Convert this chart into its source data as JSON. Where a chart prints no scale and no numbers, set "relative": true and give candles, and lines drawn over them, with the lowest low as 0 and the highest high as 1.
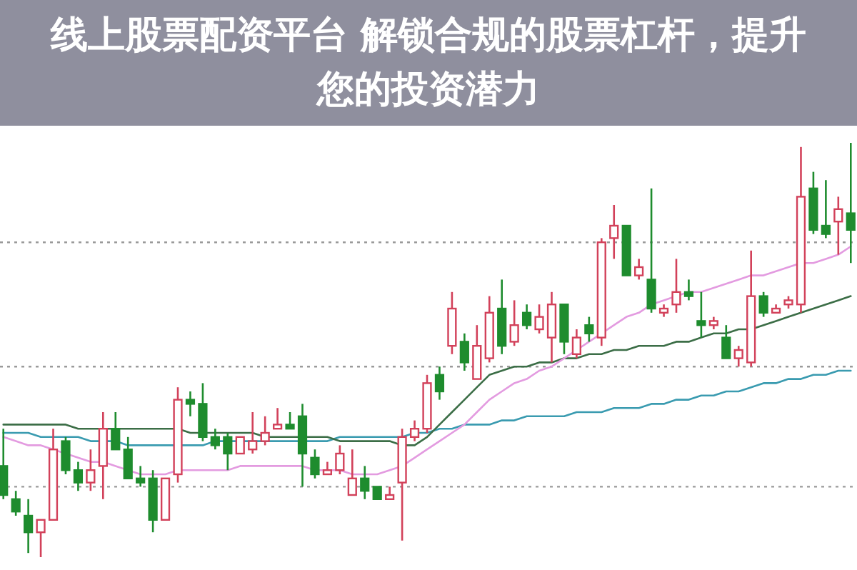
{
  "chart_data": {
    "type": "candlestick",
    "title": "线上股票配资平台 解锁合规的股票杠杆，提升您的投资潜力",
    "relative": true,
    "tick_labels": false,
    "categories": [
      null,
      null,
      null,
      null,
      null,
      null,
      null,
      null,
      null,
      null,
      null,
      null,
      null,
      null,
      null,
      null,
      null,
      null,
      null,
      null,
      null,
      null,
      null,
      null,
      null,
      null,
      null,
      null,
      null,
      null,
      null,
      null,
      null,
      null,
      null,
      null,
      null,
      null,
      null,
      null,
      null,
      null,
      null,
      null,
      null,
      null,
      null,
      null,
      null,
      null,
      null,
      null,
      null,
      null,
      null,
      null,
      null,
      null,
      null,
      null,
      null,
      null,
      null,
      null,
      null,
      null,
      null,
      null,
      null
    ],
    "ohlc": [
      [
        0.22,
        0.31,
        0.14,
        0.15
      ],
      [
        0.14,
        0.16,
        0.1,
        0.11
      ],
      [
        0.1,
        0.14,
        0.01,
        0.06
      ],
      [
        0.06,
        0.09,
        0.0,
        0.09
      ],
      [
        0.09,
        0.31,
        0.09,
        0.26
      ],
      [
        0.28,
        0.29,
        0.2,
        0.21
      ],
      [
        0.21,
        0.23,
        0.16,
        0.18
      ],
      [
        0.18,
        0.26,
        0.16,
        0.21
      ],
      [
        0.22,
        0.35,
        0.14,
        0.31
      ],
      [
        0.31,
        0.35,
        0.26,
        0.26
      ],
      [
        0.26,
        0.29,
        0.19,
        0.19
      ],
      [
        0.19,
        0.22,
        0.17,
        0.18
      ],
      [
        0.19,
        0.21,
        0.06,
        0.09
      ],
      [
        0.09,
        0.19,
        0.09,
        0.19
      ],
      [
        0.2,
        0.41,
        0.18,
        0.38
      ],
      [
        0.38,
        0.4,
        0.34,
        0.37
      ],
      [
        0.37,
        0.42,
        0.28,
        0.29
      ],
      [
        0.29,
        0.31,
        0.26,
        0.27
      ],
      [
        0.29,
        0.3,
        0.21,
        0.25
      ],
      [
        0.25,
        0.29,
        0.25,
        0.29
      ],
      [
        0.26,
        0.35,
        0.25,
        0.28
      ],
      [
        0.28,
        0.34,
        0.27,
        0.3
      ],
      [
        0.31,
        0.36,
        0.31,
        0.32
      ],
      [
        0.32,
        0.35,
        0.31,
        0.31
      ],
      [
        0.34,
        0.37,
        0.17,
        0.25
      ],
      [
        0.24,
        0.26,
        0.19,
        0.2
      ],
      [
        0.2,
        0.23,
        0.2,
        0.21
      ],
      [
        0.21,
        0.27,
        0.2,
        0.25
      ],
      [
        0.15,
        0.26,
        0.15,
        0.19
      ],
      [
        0.19,
        0.22,
        0.14,
        0.16
      ],
      [
        0.17,
        0.17,
        0.14,
        0.14
      ],
      [
        0.14,
        0.17,
        0.14,
        0.15
      ],
      [
        0.18,
        0.31,
        0.04,
        0.29
      ],
      [
        0.29,
        0.33,
        0.28,
        0.31
      ],
      [
        0.31,
        0.44,
        0.3,
        0.42
      ],
      [
        0.44,
        0.46,
        0.38,
        0.4
      ],
      [
        0.51,
        0.64,
        0.49,
        0.6
      ],
      [
        0.52,
        0.54,
        0.45,
        0.47
      ],
      [
        0.43,
        0.56,
        0.43,
        0.51
      ],
      [
        0.48,
        0.63,
        0.47,
        0.59
      ],
      [
        0.6,
        0.67,
        0.49,
        0.51
      ],
      [
        0.52,
        0.62,
        0.51,
        0.56
      ],
      [
        0.59,
        0.61,
        0.55,
        0.56
      ],
      [
        0.55,
        0.61,
        0.54,
        0.58
      ],
      [
        0.53,
        0.64,
        0.47,
        0.61
      ],
      [
        0.61,
        0.61,
        0.49,
        0.52
      ],
      [
        0.49,
        0.55,
        0.48,
        0.53
      ],
      [
        0.56,
        0.58,
        0.52,
        0.54
      ],
      [
        0.53,
        0.77,
        0.51,
        0.76
      ],
      [
        0.77,
        0.85,
        0.72,
        0.8
      ],
      [
        0.8,
        0.8,
        0.68,
        0.68
      ],
      [
        0.68,
        0.72,
        0.67,
        0.7
      ],
      [
        0.67,
        0.89,
        0.59,
        0.6
      ],
      [
        0.59,
        0.61,
        0.58,
        0.6
      ],
      [
        0.61,
        0.72,
        0.59,
        0.64
      ],
      [
        0.64,
        0.67,
        0.62,
        0.63
      ],
      [
        0.57,
        0.64,
        0.53,
        0.56
      ],
      [
        0.56,
        0.58,
        0.55,
        0.57
      ],
      [
        0.53,
        0.56,
        0.48,
        0.48
      ],
      [
        0.48,
        0.51,
        0.46,
        0.5
      ],
      [
        0.47,
        0.74,
        0.46,
        0.63
      ],
      [
        0.63,
        0.64,
        0.58,
        0.59
      ],
      [
        0.59,
        0.61,
        0.59,
        0.6
      ],
      [
        0.61,
        0.63,
        0.6,
        0.62
      ],
      [
        0.61,
        0.99,
        0.59,
        0.87
      ],
      [
        0.89,
        0.93,
        0.78,
        0.79
      ],
      [
        0.8,
        0.91,
        0.77,
        0.78
      ],
      [
        0.81,
        0.87,
        0.73,
        0.84
      ],
      [
        0.83,
        1.0,
        0.71,
        0.79
      ]
    ],
    "colors": [
      "#1e8c2e",
      "#1e8c2e",
      "#1e8c2e",
      "#d2415a",
      "#d2415a",
      "#1e8c2e",
      "#1e8c2e",
      "#d2415a",
      "#d2415a",
      "#1e8c2e",
      "#1e8c2e",
      "#1e8c2e",
      "#1e8c2e",
      "#d2415a",
      "#d2415a",
      "#1e8c2e",
      "#1e8c2e",
      "#1e8c2e",
      "#1e8c2e",
      "#d2415a",
      "#d2415a",
      "#d2415a",
      "#d2415a",
      "#1e8c2e",
      "#1e8c2e",
      "#1e8c2e",
      "#d2415a",
      "#d2415a",
      "#d2415a",
      "#1e8c2e",
      "#1e8c2e",
      "#d2415a",
      "#d2415a",
      "#d2415a",
      "#d2415a",
      "#1e8c2e",
      "#d2415a",
      "#1e8c2e",
      "#d2415a",
      "#d2415a",
      "#1e8c2e",
      "#d2415a",
      "#1e8c2e",
      "#d2415a",
      "#d2415a",
      "#1e8c2e",
      "#d2415a",
      "#1e8c2e",
      "#d2415a",
      "#d2415a",
      "#1e8c2e",
      "#d2415a",
      "#1e8c2e",
      "#d2415a",
      "#d2415a",
      "#1e8c2e",
      "#1e8c2e",
      "#d2415a",
      "#1e8c2e",
      "#d2415a",
      "#d2415a",
      "#1e8c2e",
      "#d2415a",
      "#d2415a",
      "#d2415a",
      "#1e8c2e",
      "#1e8c2e",
      "#d2415a",
      "#1e8c2e"
    ],
    "series": [
      {
        "type": "line",
        "color": "#3a9bb0",
        "values": [
          0.3,
          0.3,
          0.3,
          0.29,
          0.29,
          0.29,
          0.29,
          0.28,
          0.28,
          0.28,
          0.27,
          0.27,
          0.27,
          0.27,
          0.27,
          0.27,
          0.27,
          0.28,
          0.28,
          0.28,
          0.28,
          0.28,
          0.28,
          0.28,
          0.28,
          0.28,
          0.28,
          0.29,
          0.29,
          0.29,
          0.29,
          0.29,
          0.29,
          0.3,
          0.3,
          0.31,
          0.31,
          0.32,
          0.32,
          0.32,
          0.33,
          0.33,
          0.34,
          0.34,
          0.34,
          0.34,
          0.35,
          0.35,
          0.35,
          0.36,
          0.36,
          0.36,
          0.37,
          0.37,
          0.38,
          0.38,
          0.39,
          0.39,
          0.4,
          0.4,
          0.41,
          0.42,
          0.42,
          0.43,
          0.43,
          0.44,
          0.44,
          0.45,
          0.45
        ]
      },
      {
        "type": "line",
        "color": "#3c6e47",
        "values": [
          0.32,
          0.32,
          0.32,
          0.32,
          0.32,
          0.32,
          0.31,
          0.31,
          0.31,
          0.31,
          0.31,
          0.31,
          0.31,
          0.31,
          0.31,
          0.3,
          0.3,
          0.3,
          0.3,
          0.3,
          0.3,
          0.29,
          0.29,
          0.29,
          0.29,
          0.29,
          0.29,
          0.28,
          0.28,
          0.28,
          0.28,
          0.28,
          0.27,
          0.27,
          0.29,
          0.32,
          0.35,
          0.38,
          0.41,
          0.44,
          0.45,
          0.46,
          0.46,
          0.47,
          0.47,
          0.48,
          0.48,
          0.49,
          0.49,
          0.5,
          0.5,
          0.51,
          0.51,
          0.51,
          0.52,
          0.52,
          0.53,
          0.54,
          0.54,
          0.55,
          0.55,
          0.56,
          0.57,
          0.58,
          0.59,
          0.6,
          0.61,
          0.62,
          0.63
        ]
      },
      {
        "type": "line",
        "color": "#e39be0",
        "values": [
          0.29,
          0.28,
          0.27,
          0.27,
          0.26,
          0.25,
          0.24,
          0.23,
          0.23,
          0.22,
          0.21,
          0.2,
          0.2,
          0.2,
          0.21,
          0.21,
          0.21,
          0.21,
          0.21,
          0.22,
          0.22,
          0.22,
          0.22,
          0.22,
          0.22,
          0.21,
          0.21,
          0.21,
          0.2,
          0.2,
          0.2,
          0.21,
          0.22,
          0.24,
          0.26,
          0.28,
          0.3,
          0.32,
          0.35,
          0.38,
          0.4,
          0.42,
          0.43,
          0.45,
          0.46,
          0.48,
          0.5,
          0.52,
          0.54,
          0.56,
          0.58,
          0.59,
          0.61,
          0.62,
          0.63,
          0.64,
          0.64,
          0.65,
          0.66,
          0.67,
          0.68,
          0.68,
          0.69,
          0.7,
          0.71,
          0.71,
          0.72,
          0.73,
          0.75
        ]
      }
    ],
    "ref_lines": [
      {
        "axis": "y",
        "value": 0.76,
        "line_style": "dotted",
        "color": "#9a9a9a"
      },
      {
        "axis": "y",
        "value": 0.46,
        "line_style": "dotted",
        "color": "#9a9a9a"
      },
      {
        "axis": "y",
        "value": 0.17,
        "line_style": "dotted",
        "color": "#9a9a9a"
      }
    ]
  }
}
